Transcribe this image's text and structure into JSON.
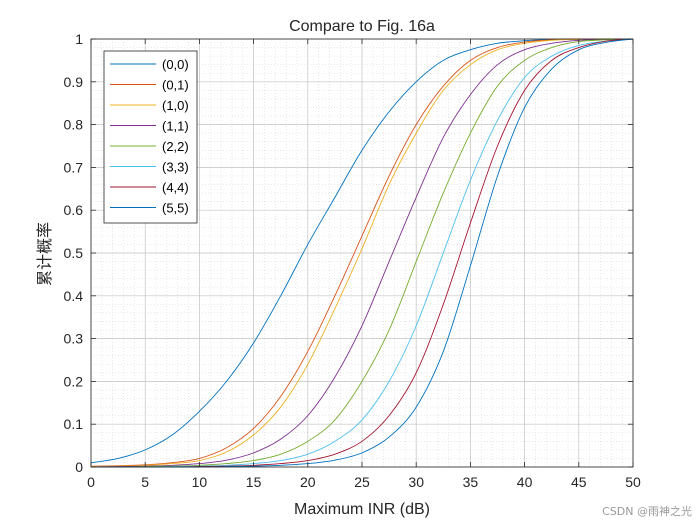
{
  "chart_data": {
    "type": "line",
    "title": "Compare to Fig. 16a",
    "xlabel": "Maximum INR (dB)",
    "ylabel": "累计概率",
    "xlim": [
      0,
      50
    ],
    "ylim": [
      0,
      1
    ],
    "xticks": [
      0,
      5,
      10,
      15,
      20,
      25,
      30,
      35,
      40,
      45,
      50
    ],
    "yticks": [
      0,
      0.1,
      0.2,
      0.3,
      0.4,
      0.5,
      0.6,
      0.7,
      0.8,
      0.9,
      1
    ],
    "grid": true,
    "minor_grid": true,
    "legend_location": "top-left",
    "x": [
      0,
      2.5,
      5,
      7.5,
      10,
      12.5,
      15,
      17.5,
      20,
      22.5,
      25,
      27.5,
      30,
      32.5,
      35,
      37.5,
      40,
      42.5,
      45,
      47.5,
      50
    ],
    "series": [
      {
        "name": "(0,0)",
        "color": "#0072BD",
        "values": [
          0.01,
          0.02,
          0.04,
          0.075,
          0.13,
          0.2,
          0.29,
          0.4,
          0.52,
          0.63,
          0.74,
          0.83,
          0.9,
          0.95,
          0.975,
          0.99,
          0.996,
          0.999,
          1.0,
          1.0,
          1.0
        ]
      },
      {
        "name": "(0,1)",
        "color": "#D95319",
        "values": [
          0.002,
          0.003,
          0.005,
          0.01,
          0.02,
          0.045,
          0.09,
          0.165,
          0.27,
          0.4,
          0.54,
          0.68,
          0.8,
          0.89,
          0.95,
          0.98,
          0.993,
          0.998,
          1.0,
          1.0,
          1.0
        ]
      },
      {
        "name": "(1,0)",
        "color": "#EDB120",
        "values": [
          0.001,
          0.002,
          0.004,
          0.008,
          0.015,
          0.035,
          0.075,
          0.14,
          0.24,
          0.37,
          0.51,
          0.66,
          0.78,
          0.88,
          0.94,
          0.975,
          0.99,
          0.997,
          0.999,
          1.0,
          1.0
        ]
      },
      {
        "name": "(1,1)",
        "color": "#7E2F8E",
        "values": [
          0.0,
          0.001,
          0.002,
          0.004,
          0.008,
          0.016,
          0.033,
          0.065,
          0.12,
          0.21,
          0.33,
          0.48,
          0.63,
          0.77,
          0.87,
          0.94,
          0.975,
          0.99,
          0.997,
          0.999,
          1.0
        ]
      },
      {
        "name": "(2,2)",
        "color": "#77AC30",
        "values": [
          0.0,
          0.0,
          0.001,
          0.002,
          0.004,
          0.008,
          0.015,
          0.03,
          0.06,
          0.11,
          0.2,
          0.32,
          0.48,
          0.64,
          0.78,
          0.89,
          0.95,
          0.98,
          0.994,
          0.998,
          1.0
        ]
      },
      {
        "name": "(3,3)",
        "color": "#4DBEEE",
        "values": [
          0.0,
          0.0,
          0.0,
          0.001,
          0.002,
          0.004,
          0.008,
          0.015,
          0.03,
          0.06,
          0.11,
          0.2,
          0.33,
          0.5,
          0.67,
          0.81,
          0.91,
          0.96,
          0.985,
          0.995,
          1.0
        ]
      },
      {
        "name": "(4,4)",
        "color": "#A2142F",
        "values": [
          0.0,
          0.0,
          0.0,
          0.0,
          0.001,
          0.002,
          0.004,
          0.008,
          0.015,
          0.03,
          0.06,
          0.12,
          0.22,
          0.38,
          0.57,
          0.75,
          0.88,
          0.95,
          0.98,
          0.995,
          1.0
        ]
      },
      {
        "name": "(5,5)",
        "color": "#0072BD",
        "values": [
          0.0,
          0.0,
          0.0,
          0.0,
          0.0,
          0.001,
          0.002,
          0.004,
          0.008,
          0.016,
          0.033,
          0.07,
          0.14,
          0.27,
          0.47,
          0.68,
          0.84,
          0.93,
          0.975,
          0.992,
          1.0
        ]
      }
    ]
  },
  "watermark": "CSDN @雨神之光"
}
